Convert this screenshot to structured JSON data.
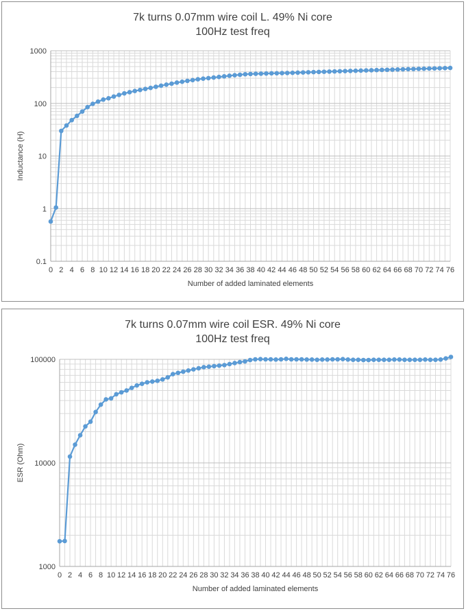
{
  "chart_data": [
    {
      "type": "line",
      "title": "7k turns 0.07mm wire coil L. 49% Ni core",
      "subtitle": "100Hz test freq",
      "xlabel": "Number of added laminated elements",
      "ylabel": "Inductance (H)",
      "yscale": "log",
      "ylim": [
        0.1,
        1000
      ],
      "xlim": [
        0,
        76
      ],
      "ytick_labels": [
        "0.1",
        "1",
        "10",
        "100",
        "1000"
      ],
      "grid": true,
      "legend": "none",
      "series_color": "#5b9bd5",
      "x": [
        0,
        1,
        2,
        3,
        4,
        5,
        6,
        7,
        8,
        9,
        10,
        11,
        12,
        13,
        14,
        15,
        16,
        17,
        18,
        19,
        20,
        21,
        22,
        23,
        24,
        25,
        26,
        27,
        28,
        29,
        30,
        31,
        32,
        33,
        34,
        35,
        36,
        37,
        38,
        39,
        40,
        41,
        42,
        43,
        44,
        45,
        46,
        47,
        48,
        49,
        50,
        51,
        52,
        53,
        54,
        55,
        56,
        57,
        58,
        59,
        60,
        61,
        62,
        63,
        64,
        65,
        66,
        67,
        68,
        69,
        70,
        71,
        72,
        73,
        74,
        75,
        76
      ],
      "values": [
        0.57,
        1.05,
        30,
        38,
        48,
        58,
        70,
        85,
        98,
        108,
        118,
        125,
        135,
        145,
        155,
        163,
        172,
        180,
        188,
        197,
        207,
        217,
        227,
        237,
        248,
        258,
        268,
        277,
        287,
        295,
        302,
        310,
        318,
        326,
        335,
        343,
        350,
        358,
        362,
        365,
        367,
        370,
        372,
        374,
        376,
        378,
        381,
        384,
        387,
        390,
        393,
        396,
        399,
        402,
        405,
        408,
        411,
        414,
        417,
        420,
        423,
        426,
        429,
        432,
        435,
        438,
        441,
        444,
        447,
        450,
        453,
        456,
        459,
        462,
        465,
        468,
        472
      ]
    },
    {
      "type": "line",
      "title": "7k turns 0.07mm wire coil ESR.  49% Ni core",
      "subtitle": "100Hz test freq",
      "xlabel": "Number of added laminated elements",
      "ylabel": "ESR (Ohm)",
      "yscale": "log",
      "ylim": [
        1000,
        100000
      ],
      "xlim": [
        0,
        76
      ],
      "ytick_labels": [
        "1000",
        "10000",
        "100000"
      ],
      "grid": true,
      "legend": "none",
      "series_color": "#5b9bd5",
      "x": [
        0,
        1,
        2,
        3,
        4,
        5,
        6,
        7,
        8,
        9,
        10,
        11,
        12,
        13,
        14,
        15,
        16,
        17,
        18,
        19,
        20,
        21,
        22,
        23,
        24,
        25,
        26,
        27,
        28,
        29,
        30,
        31,
        32,
        33,
        34,
        35,
        36,
        37,
        38,
        39,
        40,
        41,
        42,
        43,
        44,
        45,
        46,
        47,
        48,
        49,
        50,
        51,
        52,
        53,
        54,
        55,
        56,
        57,
        58,
        59,
        60,
        61,
        62,
        63,
        64,
        65,
        66,
        67,
        68,
        69,
        70,
        71,
        72,
        73,
        74,
        75,
        76
      ],
      "values": [
        1750,
        1760,
        11500,
        15000,
        18500,
        22500,
        25000,
        31000,
        36500,
        41000,
        42000,
        46000,
        48000,
        50000,
        53000,
        56000,
        58000,
        60000,
        61000,
        62000,
        64000,
        67000,
        72000,
        74000,
        76000,
        78000,
        80000,
        82000,
        84000,
        85000,
        86000,
        87000,
        88000,
        90000,
        92000,
        94000,
        95500,
        98500,
        100000,
        100500,
        100000,
        100000,
        99500,
        100000,
        101000,
        100000,
        100000,
        100000,
        99500,
        99500,
        99000,
        99500,
        99500,
        100000,
        100000,
        100500,
        99500,
        99000,
        99000,
        98500,
        98500,
        99000,
        99000,
        99000,
        99000,
        99500,
        99500,
        99000,
        99000,
        99000,
        99000,
        99500,
        99000,
        99000,
        99500,
        102000,
        105500
      ]
    }
  ]
}
